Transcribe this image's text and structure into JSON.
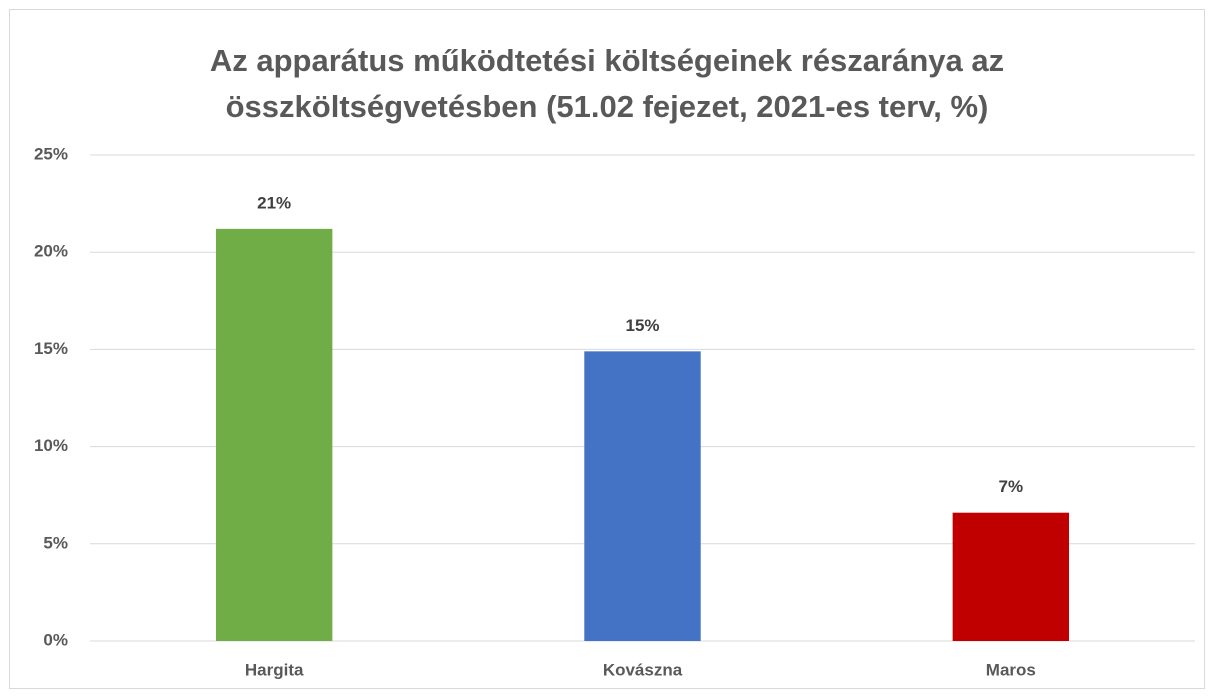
{
  "chart_data": {
    "type": "bar",
    "title": "Az apparátus működtetési költségeinek részaránya az összköltségvetésben (51.02 fejezet, 2021-es terv, %)",
    "categories": [
      "Hargita",
      "Kovászna",
      "Maros"
    ],
    "values": [
      21.2,
      14.9,
      6.6
    ],
    "value_labels": [
      "21%",
      "15%",
      "7%"
    ],
    "colors": [
      "#70ad47",
      "#4472c4",
      "#c00000"
    ],
    "ylim": [
      0,
      25
    ],
    "yticks": [
      {
        "value": 0,
        "label": "0%"
      },
      {
        "value": 5,
        "label": "5%"
      },
      {
        "value": 10,
        "label": "10%"
      },
      {
        "value": 15,
        "label": "15%"
      },
      {
        "value": 20,
        "label": "20%"
      },
      {
        "value": 25,
        "label": "25%"
      }
    ],
    "grid": true
  }
}
